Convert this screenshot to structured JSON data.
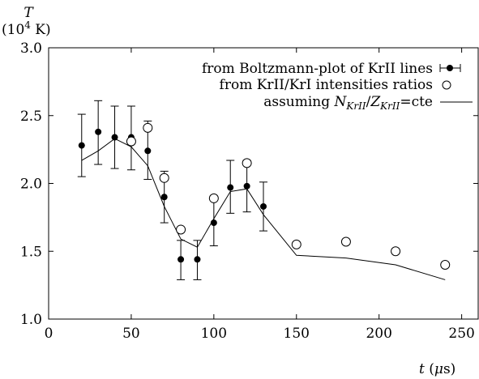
{
  "chart_data": {
    "type": "scatter",
    "title": "",
    "ylabel": {
      "symbol": "T",
      "units_prefix": "(10",
      "units_exp": "4",
      "units_suffix": " K)"
    },
    "xlabel": {
      "symbol": "t",
      "units_open": "(",
      "units_mu": "μ",
      "units_rest": "s)"
    },
    "xlim": [
      0,
      260
    ],
    "ylim": [
      1.0,
      3.0
    ],
    "x_ticks": [
      0,
      50,
      100,
      150,
      200,
      250
    ],
    "x_tick_labels": [
      "0",
      "50",
      "100",
      "150",
      "200",
      "250"
    ],
    "y_ticks": [
      1.0,
      1.5,
      2.0,
      2.5,
      3.0
    ],
    "y_tick_labels": [
      "1.0",
      "1.5",
      "2.0",
      "2.5",
      "3.0"
    ],
    "grid": false,
    "legend_position": "top-right",
    "legend": {
      "line1": "from Boltzmann-plot of KrII lines",
      "line2": "from KrII/KrI intensities ratios",
      "line3_prefix": "assuming ",
      "line3_N": "N",
      "line3_N_sub": "KrII",
      "line3_slash": "/",
      "line3_Z": "Z",
      "line3_Z_sub": "KrII",
      "line3_suffix": "=cte"
    },
    "series": [
      {
        "name": "from Boltzmann-plot of KrII lines",
        "style": "filled-circle-errorbar",
        "x": [
          20,
          30,
          40,
          50,
          60,
          70,
          80,
          90,
          100,
          110,
          120,
          130
        ],
        "y": [
          2.28,
          2.38,
          2.34,
          2.34,
          2.24,
          1.9,
          1.44,
          1.44,
          1.71,
          1.97,
          1.98,
          1.83
        ],
        "ylow": [
          2.05,
          2.14,
          2.11,
          2.1,
          2.03,
          1.71,
          1.29,
          1.29,
          1.54,
          1.78,
          1.79,
          1.65
        ],
        "yhigh": [
          2.51,
          2.61,
          2.57,
          2.57,
          2.46,
          2.09,
          1.58,
          1.58,
          1.88,
          2.17,
          2.17,
          2.01
        ]
      },
      {
        "name": "from KrII/KrI intensities ratios",
        "style": "open-circle",
        "x": [
          50,
          60,
          70,
          80,
          100,
          120,
          150,
          180,
          210,
          240
        ],
        "y": [
          2.31,
          2.41,
          2.04,
          1.66,
          1.89,
          2.15,
          1.55,
          1.57,
          1.5,
          1.4
        ]
      },
      {
        "name": "assuming N_KrII/Z_KrII=cte",
        "style": "line",
        "x": [
          20,
          30,
          40,
          50,
          60,
          70,
          80,
          90,
          100,
          110,
          120,
          130,
          150,
          180,
          210,
          240
        ],
        "y": [
          2.17,
          2.24,
          2.33,
          2.27,
          2.13,
          1.83,
          1.59,
          1.53,
          1.74,
          1.94,
          1.96,
          1.77,
          1.47,
          1.45,
          1.4,
          1.29
        ]
      }
    ]
  }
}
